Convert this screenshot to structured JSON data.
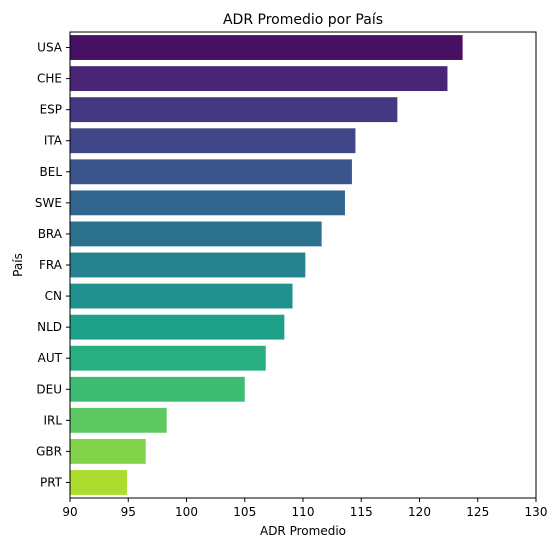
{
  "chart_data": {
    "type": "bar",
    "orientation": "horizontal",
    "title": "ADR Promedio por País",
    "xlabel": "ADR Promedio",
    "ylabel": "País",
    "categories": [
      "USA",
      "CHE",
      "ESP",
      "ITA",
      "BEL",
      "SWE",
      "BRA",
      "FRA",
      "CN",
      "NLD",
      "AUT",
      "DEU",
      "IRL",
      "GBR",
      "PRT"
    ],
    "values": [
      123.7,
      122.4,
      118.1,
      114.5,
      114.2,
      113.6,
      111.6,
      110.2,
      109.1,
      108.4,
      106.8,
      105.0,
      98.3,
      96.5,
      94.9
    ],
    "xlim": [
      90,
      130
    ],
    "xticks": [
      90,
      95,
      100,
      105,
      110,
      115,
      120,
      125,
      130
    ],
    "grid": false,
    "legend": "none",
    "colors": [
      "#471063",
      "#482576",
      "#453781",
      "#3f4788",
      "#39558c",
      "#32658e",
      "#2c728e",
      "#26828e",
      "#21918d",
      "#1fa088",
      "#28ae80",
      "#3fbc73",
      "#5ec962",
      "#84d44b",
      "#addc30"
    ]
  }
}
